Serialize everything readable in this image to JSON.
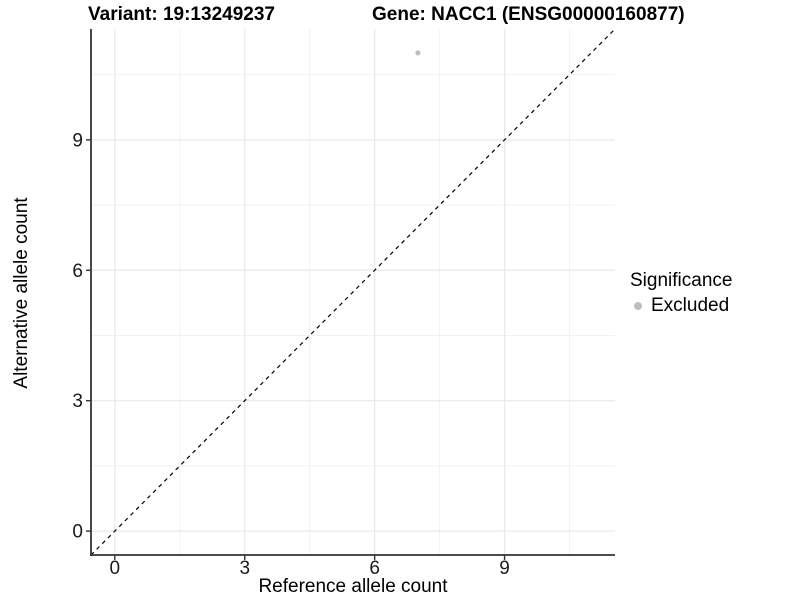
{
  "titles": {
    "variant": "Variant: 19:13249237",
    "gene": "Gene: NACC1 (ENSG00000160877)"
  },
  "chart_data": {
    "type": "scatter",
    "title": "Variant: 19:13249237 — Gene: NACC1 (ENSG00000160877)",
    "xlabel": "Reference allele count",
    "ylabel": "Alternative allele count",
    "xlim": [
      -0.55,
      11.55
    ],
    "ylim": [
      -0.55,
      11.55
    ],
    "x_ticks": [
      0,
      3,
      6,
      9
    ],
    "y_ticks": [
      0,
      3,
      6,
      9
    ],
    "minor_ticks": [
      1.5,
      4.5,
      7.5,
      10.5
    ],
    "grid": true,
    "identity_line": {
      "style": "dashed",
      "from": [
        -0.55,
        -0.55
      ],
      "to": [
        11.55,
        11.55
      ]
    },
    "points": [
      {
        "x": 7,
        "y": 11,
        "series": "Excluded"
      }
    ],
    "point_radius": 2.6,
    "legend_position": "right"
  },
  "legend": {
    "title": "Significance",
    "items": [
      {
        "label": "Excluded",
        "color": "#bfbfbf"
      }
    ]
  },
  "colors": {
    "background": "#ffffff",
    "text": "#000000",
    "axis": "#333333",
    "grid_major": "#e8e8e8",
    "grid_minor": "#f2f2f2",
    "point": "#bfbfbf",
    "identity_line": "#000000"
  }
}
